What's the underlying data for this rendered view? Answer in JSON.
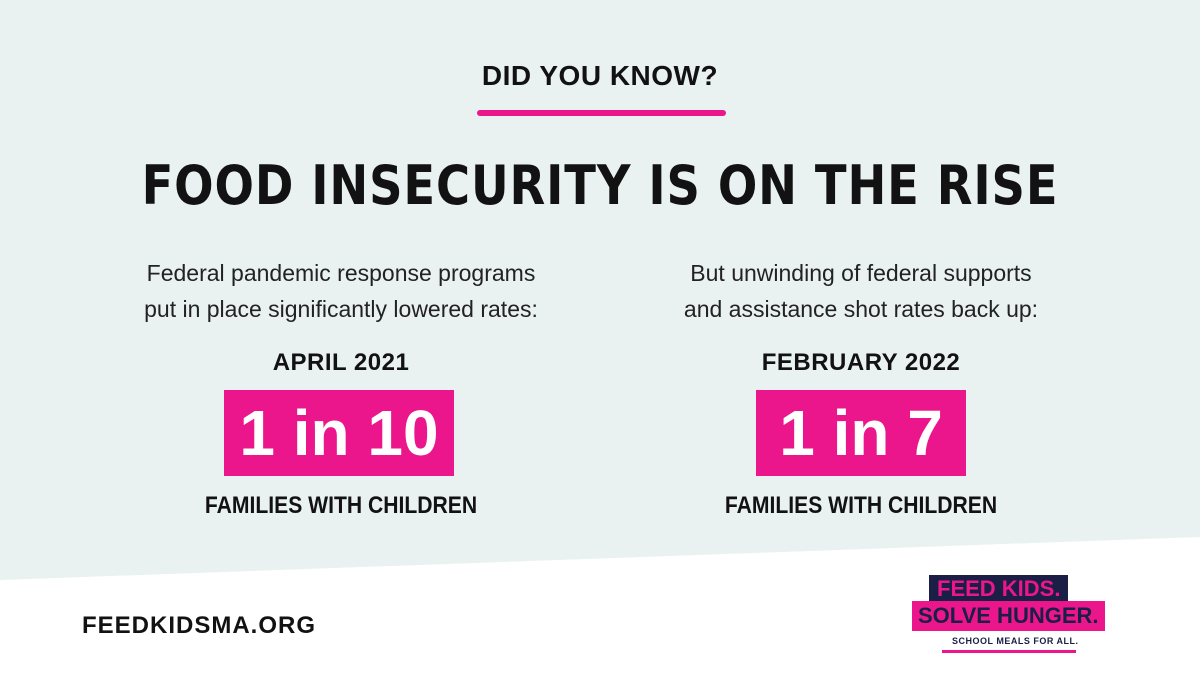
{
  "colors": {
    "background_panel": "#eaf1f1",
    "accent": "#ec168c",
    "navy": "#1b1f46",
    "text": "#121212",
    "white": "#ffffff"
  },
  "kicker": "DID YOU KNOW?",
  "headline": "FOOD INSECURITY IS ON THE RISE",
  "left": {
    "desc_line1": "Federal pandemic response programs",
    "desc_line2": "put in place significantly lowered rates:",
    "period": "APRIL 2021",
    "stat": "1 in 10",
    "unit": "FAMILIES WITH CHILDREN"
  },
  "right": {
    "desc_line1": "But unwinding of federal supports",
    "desc_line2": "and assistance shot rates back up:",
    "period": "FEBRUARY 2022",
    "stat": "1 in 7",
    "unit": "FAMILIES WITH CHILDREN"
  },
  "footer": {
    "site": "FEEDKIDSMA.ORG"
  },
  "logo": {
    "line1": "FEED KIDS.",
    "line2": "SOLVE HUNGER.",
    "tagline": "SCHOOL MEALS FOR ALL."
  }
}
